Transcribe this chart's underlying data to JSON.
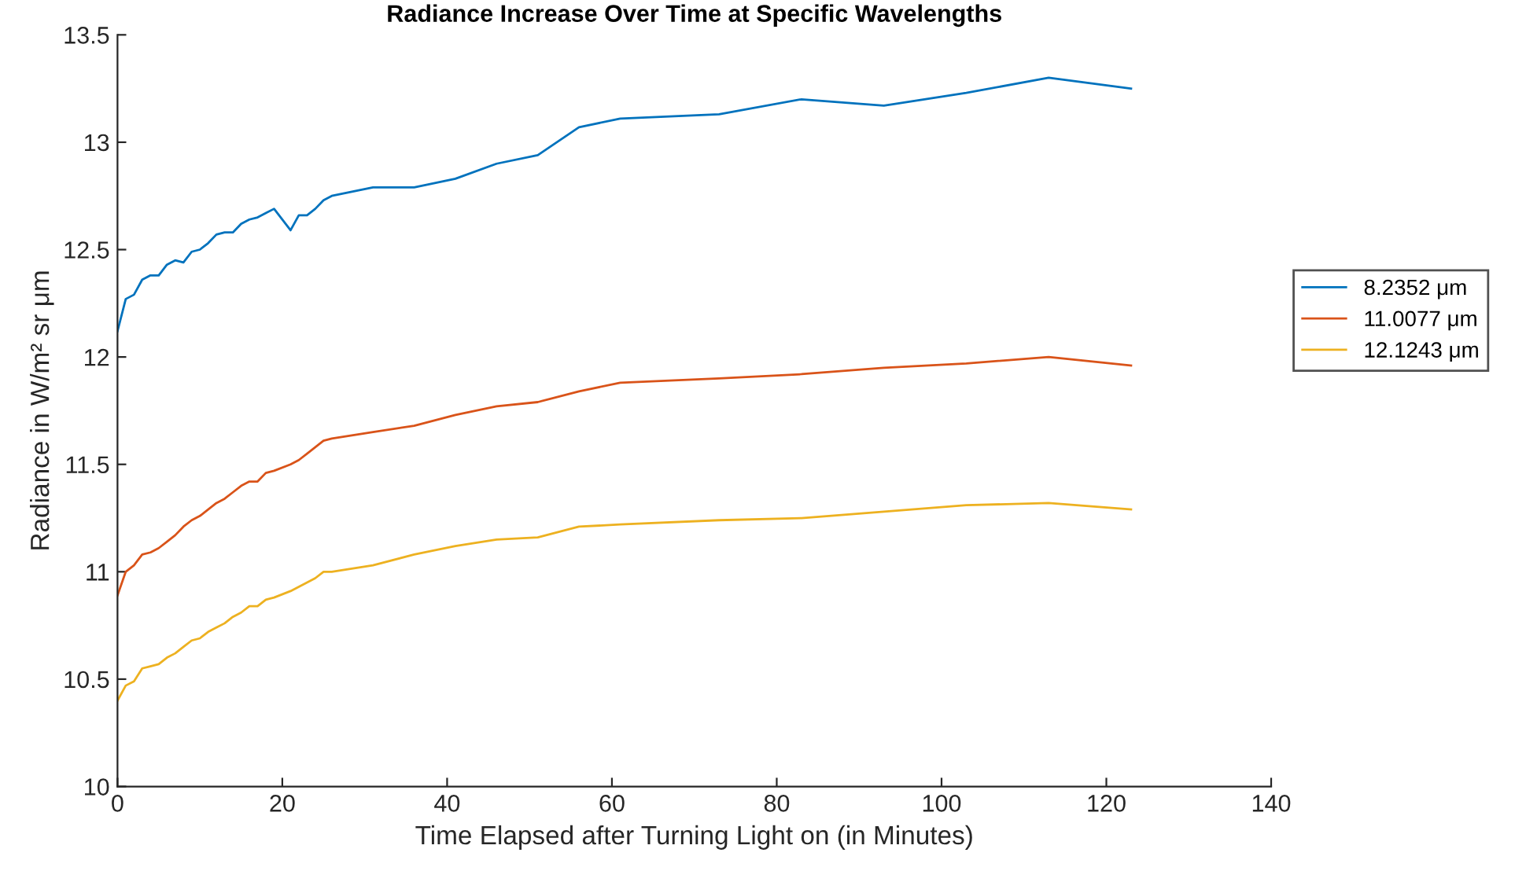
{
  "chart_data": {
    "type": "line",
    "title": "Radiance Increase Over Time at Specific Wavelengths",
    "xlabel": "Time Elapsed after Turning Light on (in Minutes)",
    "ylabel": "Radiance in W/m² sr μm",
    "x": [
      0,
      1,
      2,
      3,
      4,
      5,
      6,
      7,
      8,
      9,
      10,
      11,
      12,
      13,
      14,
      15,
      16,
      17,
      18,
      19,
      21,
      22,
      23,
      24,
      25,
      26,
      31,
      36,
      41,
      46,
      51,
      56,
      61,
      73,
      83,
      93,
      103,
      113,
      123
    ],
    "series": [
      {
        "name": "8.2352 μm",
        "color": "#0072bd",
        "values": [
          12.12,
          12.27,
          12.29,
          12.36,
          12.38,
          12.38,
          12.43,
          12.45,
          12.44,
          12.49,
          12.5,
          12.53,
          12.57,
          12.58,
          12.58,
          12.62,
          12.64,
          12.65,
          12.67,
          12.69,
          12.59,
          12.66,
          12.66,
          12.69,
          12.73,
          12.75,
          12.79,
          12.79,
          12.83,
          12.9,
          12.94,
          13.07,
          13.11,
          13.13,
          13.2,
          13.17,
          13.23,
          13.3,
          13.25
        ]
      },
      {
        "name": "11.0077 μm",
        "color": "#d95319",
        "values": [
          10.89,
          11.0,
          11.03,
          11.08,
          11.09,
          11.11,
          11.14,
          11.17,
          11.21,
          11.24,
          11.26,
          11.29,
          11.32,
          11.34,
          11.37,
          11.4,
          11.42,
          11.42,
          11.46,
          11.47,
          11.5,
          11.52,
          11.55,
          11.58,
          11.61,
          11.62,
          11.65,
          11.68,
          11.73,
          11.77,
          11.79,
          11.84,
          11.88,
          11.9,
          11.92,
          11.95,
          11.97,
          12.0,
          11.96
        ]
      },
      {
        "name": "12.1243 μm",
        "color": "#edb120",
        "values": [
          10.4,
          10.47,
          10.49,
          10.55,
          10.56,
          10.57,
          10.6,
          10.62,
          10.65,
          10.68,
          10.69,
          10.72,
          10.74,
          10.76,
          10.79,
          10.81,
          10.84,
          10.84,
          10.87,
          10.88,
          10.91,
          10.93,
          10.95,
          10.97,
          11.0,
          11.0,
          11.03,
          11.08,
          11.12,
          11.15,
          11.16,
          11.21,
          11.22,
          11.24,
          11.25,
          11.28,
          11.31,
          11.32,
          11.29
        ]
      }
    ],
    "xlim": [
      0,
      140
    ],
    "xticks": [
      0,
      20,
      40,
      60,
      80,
      100,
      120,
      140
    ],
    "ylim": [
      10,
      13.5
    ],
    "yticks": [
      10,
      10.5,
      11,
      11.5,
      12,
      12.5,
      13,
      13.5
    ],
    "grid": false,
    "legend": "right",
    "marker": "none",
    "line_style": "solid"
  }
}
